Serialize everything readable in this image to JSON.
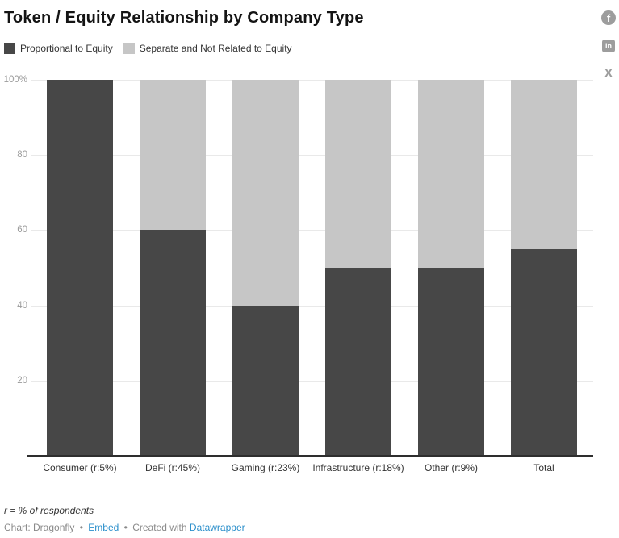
{
  "header": {
    "title": "Token / Equity Relationship by Company Type"
  },
  "share": {
    "facebook_glyph": "f",
    "linkedin_glyph": "in",
    "x_glyph": "X"
  },
  "chart_data": {
    "type": "bar",
    "stacked": true,
    "unit": "%",
    "title": "Token / Equity Relationship by Company Type",
    "categories": [
      "Consumer (r:5%)",
      "DeFi (r:45%)",
      "Gaming (r:23%)",
      "Infrastructure (r:18%)",
      "Other (r:9%)",
      "Total"
    ],
    "series": [
      {
        "name": "Proportional to Equity",
        "color": "#474747",
        "values": [
          100,
          60,
          40,
          50,
          50,
          55
        ]
      },
      {
        "name": "Separate and Not Related to Equity",
        "color": "#c6c6c6",
        "values": [
          0,
          40,
          60,
          50,
          50,
          45
        ]
      }
    ],
    "ylim": [
      0,
      100
    ],
    "yticks": [
      20,
      40,
      60,
      80,
      100
    ],
    "ytick_labels": [
      "20",
      "40",
      "60",
      "80",
      "100%"
    ],
    "grid": true,
    "legend_position": "top-left",
    "colors": {
      "grid": "#e9e9e9",
      "axis_line": "#2e2e2e",
      "ytick_label": "#9b9b9b",
      "xtick_label": "#333333"
    }
  },
  "footer": {
    "note": "r = % of respondents",
    "byline_prefix": "Chart: Dragonfly",
    "separator": "•",
    "embed_label": "Embed",
    "created_with": "Created with",
    "datawrapper_label": "Datawrapper",
    "link_color": "#2b8fcb"
  }
}
